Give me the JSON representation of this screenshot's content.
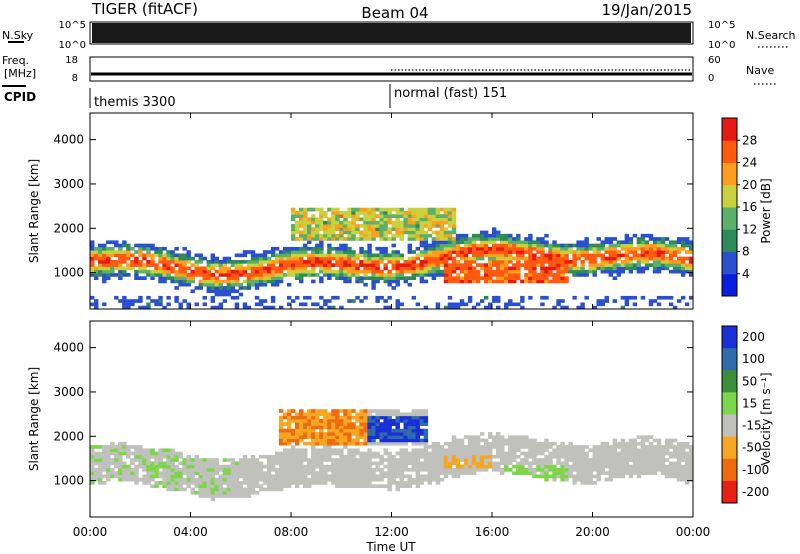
{
  "header": {
    "title": "TIGER (fitACF)",
    "beam": "Beam 04",
    "date": "19/Jan/2015"
  },
  "nsky": {
    "left_label": "N.Sky",
    "right_label": "N.Search",
    "ticks_left": [
      "10^5",
      "10^0"
    ],
    "ticks_right": [
      "10^5",
      "10^0"
    ]
  },
  "freq": {
    "left_label_line1": "Freq.",
    "left_label_line2": "[MHz]",
    "right_label": "Nave",
    "ticks_left": [
      "18",
      "8"
    ],
    "ticks_right": [
      "60",
      "0"
    ]
  },
  "cpid": {
    "label": "CPID",
    "mode1": "themis 3300",
    "mode2": "normal (fast) 151",
    "mode2_start_ut": "12:00"
  },
  "x_axis": {
    "label": "Time UT",
    "ticks": [
      "00:00",
      "04:00",
      "08:00",
      "12:00",
      "16:00",
      "20:00",
      "00:00"
    ],
    "range_hours": [
      0,
      24
    ]
  },
  "chart_data": [
    {
      "type": "heatmap",
      "name": "power_panel",
      "ylabel": "Slant Range [km]",
      "ylim": [
        180,
        4600
      ],
      "yticks": [
        "1000",
        "2000",
        "3000",
        "4000"
      ],
      "colorbar": {
        "label": "Power [dB]",
        "ticks": [
          "4",
          "8",
          "12",
          "16",
          "20",
          "24",
          "28"
        ],
        "colors": [
          "#0a1ee0",
          "#2a4fd0",
          "#2f8a5a",
          "#5ab06a",
          "#c8d23c",
          "#ff9d1e",
          "#ff5a10",
          "#e41a14"
        ]
      },
      "features": [
        {
          "desc": "main F-region echo band",
          "t_start": 0,
          "t_end": 24,
          "range_center_km": 1200,
          "power_db_peak": 28
        },
        {
          "desc": "strong echo",
          "t_start": 14,
          "t_end": 19,
          "range_center_km": 1050,
          "power_db_peak": 28
        }
      ]
    },
    {
      "type": "heatmap",
      "name": "velocity_panel",
      "ylabel": "Slant Range [km]",
      "ylim": [
        180,
        4600
      ],
      "yticks": [
        "1000",
        "2000",
        "3000",
        "4000"
      ],
      "colorbar": {
        "label": "Velocity [m s⁻¹]",
        "ticks": [
          "200",
          "100",
          "50",
          "15",
          "-15",
          "-50",
          "-100",
          "-200"
        ],
        "colors": [
          "#1a2fd6",
          "#2e6ba8",
          "#3b8f3a",
          "#7cd64a",
          "#c0c0bc",
          "#f5a623",
          "#ef6b12",
          "#e52015"
        ]
      },
      "features": [
        {
          "desc": "ground scatter band",
          "t_start": 0,
          "t_end": 24,
          "range_center_km": 1300,
          "velocity": 0
        },
        {
          "desc": "positive velocity patch",
          "t_start": 11,
          "t_end": 13.5,
          "range_center_km": 2200,
          "velocity": 200
        },
        {
          "desc": "negative velocity patch",
          "t_start": 7.5,
          "t_end": 11,
          "range_center_km": 2200,
          "velocity": -50
        }
      ]
    }
  ]
}
